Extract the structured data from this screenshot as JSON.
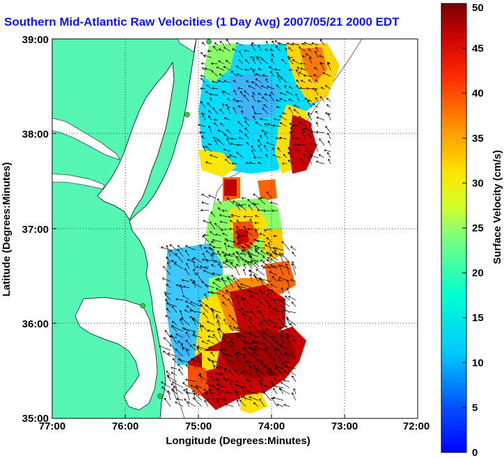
{
  "title": "Southern Mid-Atlantic Raw Velocities (1 Day Avg) 2007/05/21 2000 EDT",
  "map": {
    "xlabel": "Longitude (Degrees:Minutes)",
    "ylabel": "Latitude (Degrees:Minutes)",
    "x_ticks": [
      "77:00",
      "76:00",
      "75:00",
      "74:00",
      "73:00",
      "72:00"
    ],
    "y_ticks": [
      "39:00",
      "38:00",
      "37:00",
      "36:00",
      "35:00"
    ],
    "lon_range": [
      -77,
      -72
    ],
    "lat_range": [
      35,
      39
    ],
    "grid": "dotted",
    "land_color": "#55f5b4",
    "coast_color": "#000000"
  },
  "colorbar": {
    "label": "Surface Velocity (cm/s)",
    "ticks": [
      "0",
      "5",
      "10",
      "15",
      "20",
      "25",
      "30",
      "35",
      "40",
      "45",
      "50"
    ],
    "range": [
      0,
      50
    ],
    "colormap": "jet"
  }
}
